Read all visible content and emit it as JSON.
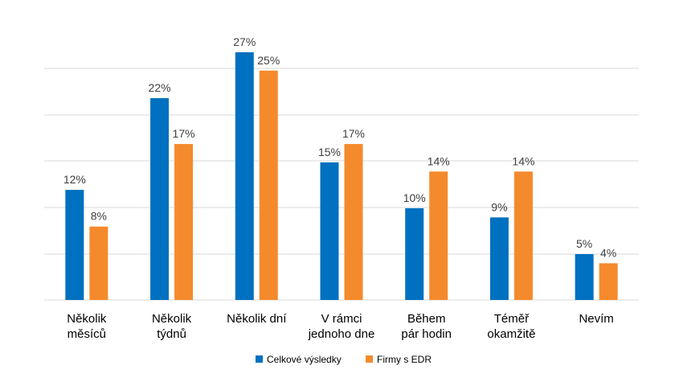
{
  "chart_data": {
    "type": "bar",
    "categories": [
      [
        "Několik",
        "měsíců"
      ],
      [
        "Několik",
        "týdnů"
      ],
      [
        "Několik dní"
      ],
      [
        "V rámci",
        "jednoho dne"
      ],
      [
        "Během",
        "pár hodin"
      ],
      [
        "Téměř",
        "okamžitě"
      ],
      [
        "Nevím"
      ]
    ],
    "series": [
      {
        "name": "Celkové výsledky",
        "color": "#0070C0",
        "values": [
          12,
          22,
          27,
          15,
          10,
          9,
          5
        ]
      },
      {
        "name": "Firmy s EDR",
        "color": "#F58A2C",
        "values": [
          8,
          17,
          25,
          17,
          14,
          14,
          4
        ]
      }
    ],
    "value_suffix": "%",
    "ylim": [
      0,
      27
    ],
    "grid": true,
    "legend_position": "bottom"
  }
}
